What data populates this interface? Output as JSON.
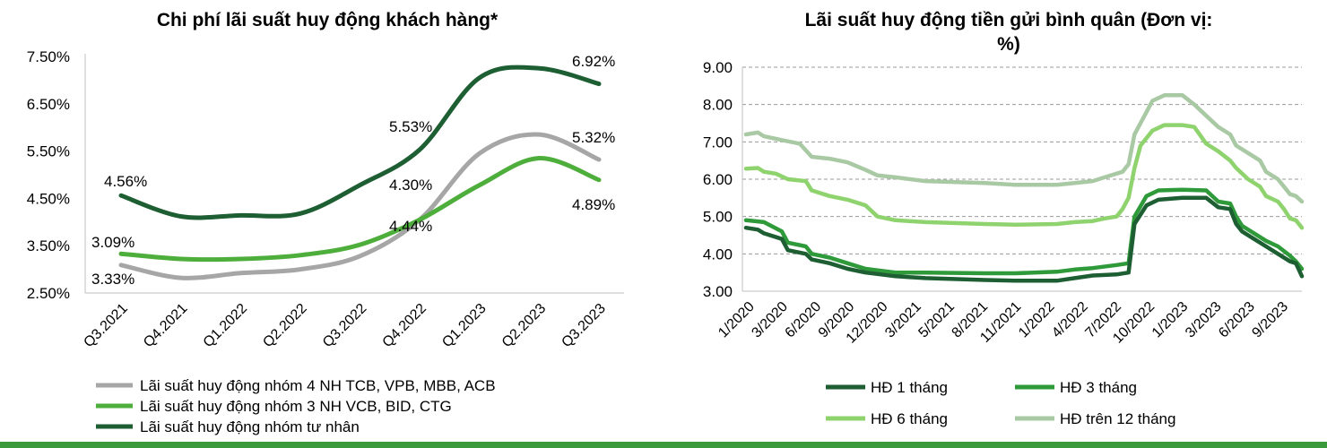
{
  "charts": [
    {
      "title": "Chi phí lãi suất huy động khách hàng*",
      "chart_data": {
        "type": "line",
        "title": "Chi phí lãi suất huy động khách hàng*",
        "categories": [
          "Q3.2021",
          "Q4.2021",
          "Q1.2022",
          "Q2.2022",
          "Q3.2022",
          "Q4.2022",
          "Q1.2023",
          "Q2.2023",
          "Q3.2023"
        ],
        "y_ticks": [
          "2.50%",
          "3.50%",
          "4.50%",
          "5.50%",
          "6.50%",
          "7.50%"
        ],
        "ylim": [
          2.5,
          7.5
        ],
        "grid": false,
        "legend_position": "bottom",
        "series": [
          {
            "name": "Lãi suất huy động nhóm 4 NH TCB, VPB, MBB, ACB",
            "color": "#a6a6a6",
            "values": [
              3.09,
              2.82,
              2.92,
              3.0,
              3.28,
              4.05,
              5.45,
              5.85,
              5.32
            ]
          },
          {
            "name": "Lãi suất huy động  nhóm 3 NH VCB, BID, CTG",
            "color": "#4eae3c",
            "values": [
              3.33,
              3.22,
              3.22,
              3.3,
              3.52,
              4.05,
              4.78,
              5.35,
              4.89
            ]
          },
          {
            "name": "Lãi suất huy động  nhóm tư nhân",
            "color": "#1d5e32",
            "values": [
              4.56,
              4.12,
              4.14,
              4.18,
              4.78,
              5.53,
              7.05,
              7.25,
              6.92
            ]
          }
        ],
        "data_labels": [
          "3.09%",
          "3.33%",
          "4.56%",
          "4.30%",
          "4.44%",
          "5.53%",
          "6.92%",
          "5.32%",
          "4.89%"
        ]
      }
    },
    {
      "title": "Lãi suất huy động tiền gửi bình quân (Đơn vị: %)",
      "chart_data": {
        "type": "line",
        "title": "Lãi suất huy động tiền gửi bình quân (Đơn vị: %)",
        "x_ticks": [
          "1/2020",
          "3/2020",
          "6/2020",
          "9/2020",
          "12/2020",
          "3/2021",
          "5/2021",
          "8/2021",
          "11/2021",
          "1/2022",
          "4/2022",
          "7/2022",
          "10/2022",
          "1/2023",
          "3/2023",
          "6/2023",
          "9/2023"
        ],
        "y_ticks": [
          "3.00",
          "4.00",
          "5.00",
          "6.00",
          "7.00",
          "8.00",
          "9.00"
        ],
        "ylim": [
          3,
          9
        ],
        "grid": true,
        "legend_position": "bottom",
        "series": [
          {
            "name": "HĐ 1 tháng",
            "color": "#1d5e32",
            "points": [
              [
                0,
                4.7
              ],
              [
                2,
                4.65
              ],
              [
                3,
                4.55
              ],
              [
                6,
                4.4
              ],
              [
                7,
                4.1
              ],
              [
                10,
                4.0
              ],
              [
                11,
                3.85
              ],
              [
                14,
                3.75
              ],
              [
                17,
                3.6
              ],
              [
                20,
                3.5
              ],
              [
                25,
                3.4
              ],
              [
                30,
                3.35
              ],
              [
                40,
                3.3
              ],
              [
                45,
                3.28
              ],
              [
                52,
                3.28
              ],
              [
                55,
                3.35
              ],
              [
                58,
                3.42
              ],
              [
                62,
                3.45
              ],
              [
                64,
                3.5
              ],
              [
                65,
                4.8
              ],
              [
                67,
                5.3
              ],
              [
                69,
                5.45
              ],
              [
                73,
                5.5
              ],
              [
                77,
                5.5
              ],
              [
                79,
                5.25
              ],
              [
                81,
                5.2
              ],
              [
                82,
                4.8
              ],
              [
                83,
                4.6
              ],
              [
                85,
                4.4
              ],
              [
                87,
                4.2
              ],
              [
                89,
                4.0
              ],
              [
                91,
                3.8
              ],
              [
                92,
                3.75
              ],
              [
                93,
                3.4
              ]
            ]
          },
          {
            "name": "HĐ 3 tháng",
            "color": "#2f9a3a",
            "points": [
              [
                0,
                4.9
              ],
              [
                3,
                4.85
              ],
              [
                6,
                4.6
              ],
              [
                7,
                4.3
              ],
              [
                10,
                4.2
              ],
              [
                11,
                4.0
              ],
              [
                14,
                3.9
              ],
              [
                17,
                3.75
              ],
              [
                20,
                3.6
              ],
              [
                25,
                3.5
              ],
              [
                30,
                3.5
              ],
              [
                40,
                3.48
              ],
              [
                45,
                3.48
              ],
              [
                52,
                3.52
              ],
              [
                55,
                3.58
              ],
              [
                58,
                3.62
              ],
              [
                62,
                3.7
              ],
              [
                64,
                3.75
              ],
              [
                65,
                5.0
              ],
              [
                67,
                5.55
              ],
              [
                69,
                5.7
              ],
              [
                73,
                5.72
              ],
              [
                77,
                5.7
              ],
              [
                79,
                5.4
              ],
              [
                81,
                5.35
              ],
              [
                82,
                5.0
              ],
              [
                83,
                4.75
              ],
              [
                85,
                4.55
              ],
              [
                87,
                4.35
              ],
              [
                89,
                4.2
              ],
              [
                91,
                3.95
              ],
              [
                92,
                3.8
              ],
              [
                93,
                3.6
              ]
            ]
          },
          {
            "name": "HĐ 6 tháng",
            "color": "#8fd36e",
            "points": [
              [
                0,
                6.28
              ],
              [
                2,
                6.3
              ],
              [
                3,
                6.2
              ],
              [
                5,
                6.15
              ],
              [
                7,
                6.0
              ],
              [
                10,
                5.95
              ],
              [
                11,
                5.7
              ],
              [
                14,
                5.55
              ],
              [
                17,
                5.45
              ],
              [
                20,
                5.3
              ],
              [
                22,
                5.0
              ],
              [
                25,
                4.9
              ],
              [
                30,
                4.85
              ],
              [
                40,
                4.8
              ],
              [
                45,
                4.78
              ],
              [
                52,
                4.8
              ],
              [
                55,
                4.85
              ],
              [
                58,
                4.88
              ],
              [
                60,
                4.95
              ],
              [
                62,
                5.0
              ],
              [
                63,
                5.2
              ],
              [
                64,
                5.5
              ],
              [
                65,
                6.3
              ],
              [
                66,
                6.9
              ],
              [
                68,
                7.3
              ],
              [
                70,
                7.45
              ],
              [
                73,
                7.45
              ],
              [
                75,
                7.4
              ],
              [
                77,
                6.95
              ],
              [
                79,
                6.75
              ],
              [
                81,
                6.5
              ],
              [
                82,
                6.3
              ],
              [
                84,
                6.0
              ],
              [
                86,
                5.8
              ],
              [
                87,
                5.55
              ],
              [
                89,
                5.4
              ],
              [
                90,
                5.2
              ],
              [
                91,
                4.95
              ],
              [
                92,
                4.9
              ],
              [
                93,
                4.7
              ]
            ]
          },
          {
            "name": "HĐ trên 12 tháng",
            "color": "#a9c9a4",
            "points": [
              [
                0,
                7.2
              ],
              [
                2,
                7.25
              ],
              [
                3,
                7.15
              ],
              [
                6,
                7.05
              ],
              [
                9,
                6.95
              ],
              [
                11,
                6.6
              ],
              [
                14,
                6.55
              ],
              [
                17,
                6.45
              ],
              [
                20,
                6.25
              ],
              [
                22,
                6.1
              ],
              [
                25,
                6.05
              ],
              [
                30,
                5.95
              ],
              [
                40,
                5.9
              ],
              [
                45,
                5.85
              ],
              [
                52,
                5.85
              ],
              [
                55,
                5.9
              ],
              [
                58,
                5.95
              ],
              [
                60,
                6.05
              ],
              [
                62,
                6.15
              ],
              [
                63,
                6.2
              ],
              [
                64,
                6.4
              ],
              [
                65,
                7.2
              ],
              [
                67,
                7.8
              ],
              [
                68,
                8.1
              ],
              [
                70,
                8.25
              ],
              [
                73,
                8.25
              ],
              [
                75,
                8.0
              ],
              [
                77,
                7.7
              ],
              [
                79,
                7.4
              ],
              [
                81,
                7.2
              ],
              [
                82,
                6.9
              ],
              [
                84,
                6.7
              ],
              [
                86,
                6.5
              ],
              [
                87,
                6.2
              ],
              [
                89,
                6.0
              ],
              [
                90,
                5.8
              ],
              [
                91,
                5.6
              ],
              [
                92,
                5.55
              ],
              [
                93,
                5.4
              ]
            ]
          }
        ]
      }
    }
  ]
}
